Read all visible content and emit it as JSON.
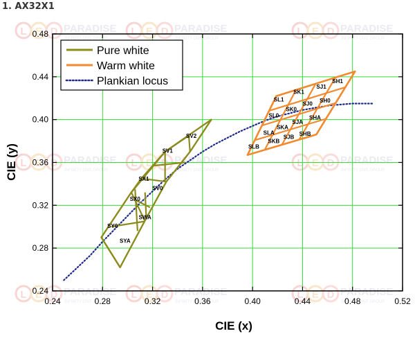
{
  "page": {
    "title": "1. AX32X1"
  },
  "watermark": {
    "logo_letters": "LED",
    "brand": "PARADISE",
    "tagline": "INFINITY ONE GROUP"
  },
  "colors": {
    "pure_white": "#8c8c1e",
    "warm_white": "#f28a30",
    "planckian": "#1f2a8a",
    "grid": "#33dd33",
    "axis": "#000000"
  },
  "chart_data": {
    "type": "scatter",
    "xlabel": "CIE (x)",
    "ylabel": "CIE (y)",
    "xlim": [
      0.24,
      0.52
    ],
    "ylim": [
      0.24,
      0.48
    ],
    "xticks": [
      "0.24",
      "0.28",
      "0.32",
      "0.36",
      "0.40",
      "0.44",
      "0.48",
      "0.52"
    ],
    "yticks": [
      "0.24",
      "0.28",
      "0.32",
      "0.36",
      "0.40",
      "0.44",
      "0.48"
    ],
    "grid": true,
    "legend_position": "top-left",
    "legend": [
      {
        "name": "Pure white",
        "style": "line",
        "color": "#8c8c1e"
      },
      {
        "name": "Warm white",
        "style": "line",
        "color": "#f28a30"
      },
      {
        "name": "Plankian locus",
        "style": "dotted",
        "color": "#1f2a8a"
      }
    ],
    "pure_white": {
      "outline": [
        [
          0.294,
          0.262
        ],
        [
          0.279,
          0.29
        ],
        [
          0.303,
          0.332
        ],
        [
          0.33,
          0.37
        ],
        [
          0.367,
          0.4
        ],
        [
          0.35,
          0.37
        ],
        [
          0.331,
          0.342
        ],
        [
          0.315,
          0.308
        ]
      ],
      "dividers": [
        [
          [
            0.279,
            0.29
          ],
          [
            0.294,
            0.262
          ]
        ],
        [
          [
            0.287,
            0.3
          ],
          [
            0.314,
            0.305
          ]
        ],
        [
          [
            0.303,
            0.332
          ],
          [
            0.314,
            0.305
          ]
        ],
        [
          [
            0.303,
            0.332
          ],
          [
            0.311,
            0.345
          ]
        ],
        [
          [
            0.311,
            0.345
          ],
          [
            0.331,
            0.342
          ]
        ],
        [
          [
            0.311,
            0.345
          ],
          [
            0.33,
            0.37
          ]
        ],
        [
          [
            0.33,
            0.37
          ],
          [
            0.349,
            0.385
          ]
        ],
        [
          [
            0.349,
            0.385
          ],
          [
            0.35,
            0.37
          ]
        ],
        [
          [
            0.33,
            0.342
          ],
          [
            0.33,
            0.37
          ]
        ],
        [
          [
            0.321,
            0.357
          ],
          [
            0.346,
            0.36
          ]
        ],
        [
          [
            0.306,
            0.325
          ],
          [
            0.318,
            0.318
          ]
        ],
        [
          [
            0.308,
            0.296
          ],
          [
            0.306,
            0.335
          ]
        ],
        [
          [
            0.315,
            0.308
          ],
          [
            0.314,
            0.332
          ]
        ]
      ],
      "labels": [
        {
          "text": "SV2",
          "x": 0.351,
          "y": 0.383
        },
        {
          "text": "SV1",
          "x": 0.332,
          "y": 0.369
        },
        {
          "text": "SX1",
          "x": 0.313,
          "y": 0.343
        },
        {
          "text": "SV0",
          "x": 0.324,
          "y": 0.334
        },
        {
          "text": "SX0",
          "x": 0.306,
          "y": 0.324
        },
        {
          "text": "SWA",
          "x": 0.314,
          "y": 0.307
        },
        {
          "text": "SY0",
          "x": 0.288,
          "y": 0.299
        },
        {
          "text": "SYA",
          "x": 0.298,
          "y": 0.285
        }
      ]
    },
    "warm_white": {
      "outline": [
        [
          0.396,
          0.367
        ],
        [
          0.451,
          0.386
        ],
        [
          0.482,
          0.445
        ],
        [
          0.419,
          0.422
        ]
      ],
      "grid_u": 4,
      "grid_v": 4,
      "labels": [
        {
          "text": "SH1",
          "x": 0.468,
          "y": 0.434
        },
        {
          "text": "SJ1",
          "x": 0.455,
          "y": 0.429
        },
        {
          "text": "SK1",
          "x": 0.437,
          "y": 0.424
        },
        {
          "text": "SL1",
          "x": 0.421,
          "y": 0.417
        },
        {
          "text": "SH0",
          "x": 0.458,
          "y": 0.416
        },
        {
          "text": "SJ0",
          "x": 0.444,
          "y": 0.413
        },
        {
          "text": "SK0",
          "x": 0.431,
          "y": 0.408
        },
        {
          "text": "SL0",
          "x": 0.417,
          "y": 0.402
        },
        {
          "text": "SHA",
          "x": 0.45,
          "y": 0.4
        },
        {
          "text": "SJA",
          "x": 0.436,
          "y": 0.396
        },
        {
          "text": "SKA",
          "x": 0.424,
          "y": 0.391
        },
        {
          "text": "SLA",
          "x": 0.413,
          "y": 0.386
        },
        {
          "text": "SHB",
          "x": 0.442,
          "y": 0.385
        },
        {
          "text": "SJB",
          "x": 0.429,
          "y": 0.382
        },
        {
          "text": "SKB",
          "x": 0.417,
          "y": 0.378
        },
        {
          "text": "SLB",
          "x": 0.401,
          "y": 0.373
        }
      ]
    },
    "planckian_locus": {
      "x": [
        0.249,
        0.26,
        0.27,
        0.28,
        0.29,
        0.3,
        0.31,
        0.32,
        0.33,
        0.34,
        0.35,
        0.36,
        0.37,
        0.38,
        0.39,
        0.4,
        0.41,
        0.42,
        0.43,
        0.44,
        0.45,
        0.46,
        0.47,
        0.48,
        0.49,
        0.497
      ],
      "y": [
        0.25,
        0.262,
        0.273,
        0.286,
        0.298,
        0.31,
        0.322,
        0.333,
        0.344,
        0.354,
        0.362,
        0.37,
        0.377,
        0.383,
        0.389,
        0.394,
        0.399,
        0.403,
        0.406,
        0.409,
        0.411,
        0.413,
        0.414,
        0.415,
        0.415,
        0.415
      ]
    }
  }
}
